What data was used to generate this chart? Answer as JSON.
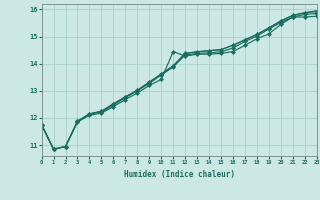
{
  "xlabel": "Humidex (Indice chaleur)",
  "bg_color": "#cce8e4",
  "grid_color": "#aad0cc",
  "line_color": "#1a6e60",
  "xlim": [
    0,
    23
  ],
  "ylim": [
    10.6,
    16.2
  ],
  "xticks": [
    0,
    1,
    2,
    3,
    4,
    5,
    6,
    7,
    8,
    9,
    10,
    11,
    12,
    13,
    14,
    15,
    16,
    17,
    18,
    19,
    20,
    21,
    22,
    23
  ],
  "yticks": [
    11,
    12,
    13,
    14,
    15,
    16
  ],
  "line1_x": [
    0,
    1,
    2,
    3,
    4,
    5,
    6,
    7,
    8,
    9,
    10,
    11,
    12,
    13,
    14,
    15,
    16,
    17,
    18,
    19,
    20,
    21,
    22,
    23
  ],
  "line1_y": [
    11.75,
    10.85,
    10.95,
    11.85,
    12.1,
    12.18,
    12.42,
    12.68,
    12.92,
    13.2,
    13.42,
    14.45,
    14.28,
    14.35,
    14.35,
    14.38,
    14.45,
    14.68,
    14.92,
    15.1,
    15.45,
    15.72,
    15.72,
    15.75
  ],
  "line2_x": [
    0,
    1,
    2,
    3,
    4,
    5,
    6,
    7,
    8,
    9,
    10,
    11,
    12,
    13,
    14,
    15,
    16,
    17,
    18,
    19,
    20,
    21,
    22,
    23
  ],
  "line2_y": [
    11.75,
    10.85,
    10.95,
    11.88,
    12.15,
    12.22,
    12.48,
    12.75,
    13.0,
    13.28,
    13.58,
    13.88,
    14.32,
    14.38,
    14.4,
    14.44,
    14.58,
    14.82,
    15.02,
    15.28,
    15.52,
    15.72,
    15.82,
    15.85
  ],
  "line3_x": [
    0,
    1,
    2,
    3,
    4,
    5,
    6,
    7,
    8,
    9,
    10,
    11,
    12,
    13,
    14,
    15,
    16,
    17,
    18,
    19,
    20,
    21,
    22,
    23
  ],
  "line3_y": [
    11.75,
    10.85,
    10.95,
    11.88,
    12.15,
    12.25,
    12.52,
    12.78,
    13.02,
    13.32,
    13.62,
    13.92,
    14.38,
    14.44,
    14.48,
    14.52,
    14.68,
    14.88,
    15.08,
    15.32,
    15.58,
    15.78,
    15.88,
    15.92
  ],
  "line4_x": [
    0,
    1,
    2,
    3,
    4,
    5,
    6,
    7,
    8,
    9,
    10,
    11,
    12,
    13,
    14,
    15,
    16,
    17,
    18,
    19,
    20,
    21,
    22,
    23
  ],
  "line4_y": [
    11.75,
    10.85,
    10.95,
    11.88,
    12.15,
    12.25,
    12.52,
    12.78,
    13.02,
    13.32,
    13.62,
    13.92,
    14.38,
    14.44,
    14.48,
    14.52,
    14.68,
    14.88,
    15.08,
    15.32,
    15.58,
    15.78,
    15.88,
    15.95
  ]
}
